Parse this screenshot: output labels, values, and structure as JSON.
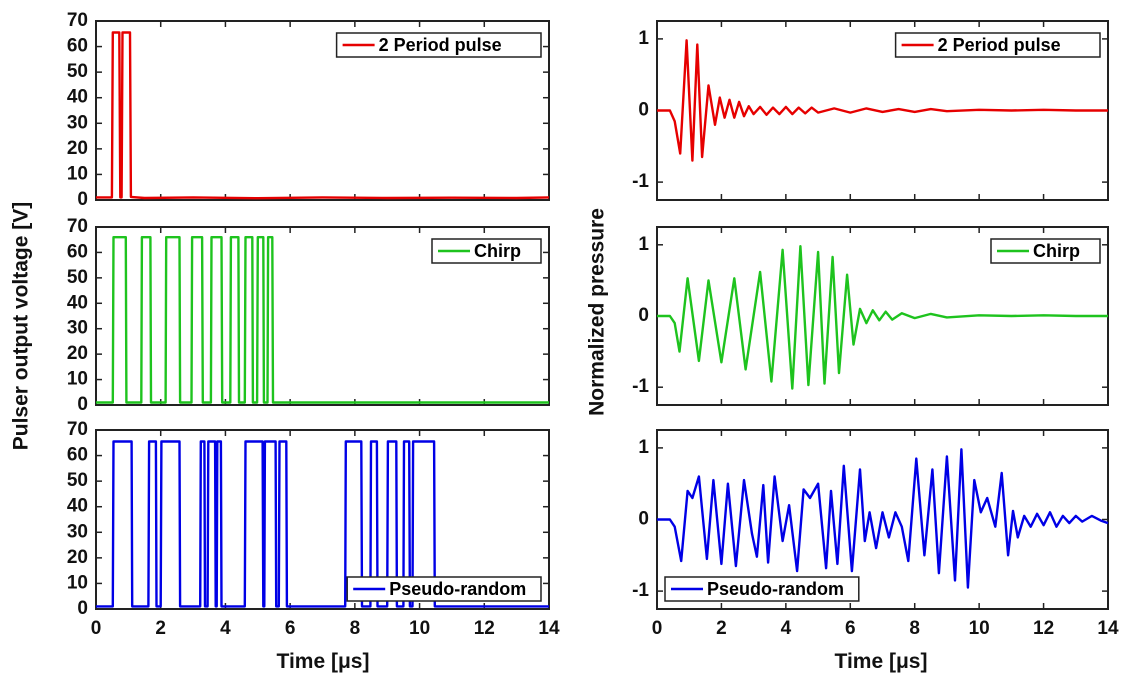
{
  "figure": {
    "left_ylabel": "Pulser output voltage [V]",
    "right_ylabel": "Normalized pressure",
    "left_xlabel": "Time [μs]",
    "right_xlabel": "Time [μs]"
  },
  "chart_data": [
    {
      "type": "line",
      "name": "voltage-2-period",
      "legend": "2 Period pulse",
      "color": "#e60000",
      "legend_position": "top-right",
      "xlim": [
        0,
        14
      ],
      "ylim": [
        0,
        70
      ],
      "xticks": [
        "0",
        "2",
        "4",
        "6",
        "8",
        "10",
        "12",
        "14"
      ],
      "yticks": [
        "0",
        "10",
        "20",
        "30",
        "40",
        "50",
        "60",
        "70"
      ],
      "show_xticklabels": false,
      "x": [
        0,
        0.49,
        0.52,
        0.72,
        0.75,
        0.79,
        0.82,
        1.05,
        1.08,
        1.5,
        3,
        5,
        7,
        9,
        11,
        13,
        14
      ],
      "y": [
        1,
        1,
        65.5,
        65.5,
        1,
        1,
        65.5,
        65.5,
        1.2,
        0.8,
        1.0,
        0.7,
        1.0,
        0.8,
        0.9,
        0.8,
        1.0
      ]
    },
    {
      "type": "line",
      "name": "voltage-chirp",
      "legend": "Chirp",
      "color": "#1ec31e",
      "legend_position": "top-right",
      "xlim": [
        0,
        14
      ],
      "ylim": [
        0,
        70
      ],
      "xticks": [
        "0",
        "2",
        "4",
        "6",
        "8",
        "10",
        "12",
        "14"
      ],
      "yticks": [
        "0",
        "10",
        "20",
        "30",
        "40",
        "50",
        "60",
        "70"
      ],
      "show_xticklabels": false,
      "pulses": [
        [
          0.52,
          0.92
        ],
        [
          1.4,
          1.68
        ],
        [
          2.15,
          2.58
        ],
        [
          2.95,
          3.28
        ],
        [
          3.55,
          3.88
        ],
        [
          4.15,
          4.4
        ],
        [
          4.6,
          4.83
        ],
        [
          4.98,
          5.17
        ],
        [
          5.3,
          5.45
        ]
      ],
      "high": 66,
      "low": 1
    },
    {
      "type": "line",
      "name": "voltage-pseudo-random",
      "legend": "Pseudo-random",
      "color": "#0000e6",
      "legend_position": "bottom-right",
      "xlim": [
        0,
        14
      ],
      "ylim": [
        0,
        70
      ],
      "xticks": [
        "0",
        "2",
        "4",
        "6",
        "8",
        "10",
        "12",
        "14"
      ],
      "yticks": [
        "0",
        "10",
        "20",
        "30",
        "40",
        "50",
        "60",
        "70"
      ],
      "show_xticklabels": true,
      "pulses": [
        [
          0.52,
          1.1
        ],
        [
          1.62,
          1.85
        ],
        [
          2.0,
          2.58
        ],
        [
          3.22,
          3.35
        ],
        [
          3.45,
          3.68
        ],
        [
          3.73,
          3.86
        ],
        [
          4.6,
          5.15
        ],
        [
          5.2,
          5.55
        ],
        [
          5.65,
          5.88
        ],
        [
          7.7,
          8.2
        ],
        [
          8.48,
          8.68
        ],
        [
          9.0,
          9.28
        ],
        [
          9.5,
          9.68
        ],
        [
          9.78,
          10.45
        ]
      ],
      "high": 65.5,
      "low": 1
    },
    {
      "type": "line",
      "name": "pressure-2-period",
      "legend": "2 Period pulse",
      "color": "#e60000",
      "legend_position": "top-right",
      "xlim": [
        0,
        14
      ],
      "ylim": [
        -1.25,
        1.25
      ],
      "xticks": [
        "0",
        "2",
        "4",
        "6",
        "8",
        "10",
        "12",
        "14"
      ],
      "yticks": [
        "-1",
        "0",
        "1"
      ],
      "show_xticklabels": false,
      "x": [
        0,
        0.4,
        0.55,
        0.72,
        0.92,
        1.1,
        1.25,
        1.4,
        1.6,
        1.8,
        1.95,
        2.1,
        2.25,
        2.4,
        2.55,
        2.7,
        2.85,
        3.0,
        3.2,
        3.4,
        3.6,
        3.8,
        4.0,
        4.2,
        4.4,
        4.6,
        4.8,
        5.0,
        5.5,
        6.0,
        6.5,
        7.0,
        7.5,
        8.0,
        8.5,
        9.0,
        10.0,
        11.0,
        12.0,
        13.0,
        14.0
      ],
      "y": [
        0,
        0,
        -0.15,
        -0.6,
        0.98,
        -0.7,
        0.92,
        -0.65,
        0.35,
        -0.2,
        0.18,
        -0.1,
        0.15,
        -0.1,
        0.12,
        -0.08,
        0.06,
        -0.05,
        0.05,
        -0.06,
        0.04,
        -0.05,
        0.05,
        -0.05,
        0.04,
        -0.04,
        0.04,
        -0.03,
        0.03,
        -0.03,
        0.03,
        -0.02,
        0.02,
        -0.02,
        0.02,
        -0.01,
        0.01,
        0,
        0.01,
        0,
        0
      ]
    },
    {
      "type": "line",
      "name": "pressure-chirp",
      "legend": "Chirp",
      "color": "#1ec31e",
      "legend_position": "top-right",
      "xlim": [
        0,
        14
      ],
      "ylim": [
        -1.25,
        1.25
      ],
      "xticks": [
        "0",
        "2",
        "4",
        "6",
        "8",
        "10",
        "12",
        "14"
      ],
      "yticks": [
        "-1",
        "0",
        "1"
      ],
      "show_xticklabels": false,
      "x": [
        0,
        0.4,
        0.55,
        0.7,
        0.95,
        1.3,
        1.6,
        2.0,
        2.4,
        2.75,
        3.2,
        3.55,
        3.9,
        4.2,
        4.45,
        4.7,
        5.0,
        5.2,
        5.45,
        5.65,
        5.9,
        6.1,
        6.3,
        6.5,
        6.7,
        6.9,
        7.1,
        7.3,
        7.6,
        8.0,
        8.5,
        9.0,
        10.0,
        11.0,
        12.0,
        13.0,
        14.0
      ],
      "y": [
        0,
        0,
        -0.1,
        -0.5,
        0.53,
        -0.63,
        0.5,
        -0.65,
        0.53,
        -0.75,
        0.62,
        -0.92,
        0.93,
        -1.02,
        0.98,
        -0.97,
        0.9,
        -0.95,
        0.83,
        -0.8,
        0.58,
        -0.4,
        0.1,
        -0.1,
        0.08,
        -0.06,
        0.06,
        -0.05,
        0.04,
        -0.03,
        0.03,
        -0.02,
        0.01,
        0,
        0.01,
        0,
        0
      ]
    },
    {
      "type": "line",
      "name": "pressure-pseudo-random",
      "legend": "Pseudo-random",
      "color": "#0000e6",
      "legend_position": "bottom-left",
      "xlim": [
        0,
        14
      ],
      "ylim": [
        -1.25,
        1.25
      ],
      "xticks": [
        "0",
        "2",
        "4",
        "6",
        "8",
        "10",
        "12",
        "14"
      ],
      "yticks": [
        "-1",
        "0",
        "1"
      ],
      "show_xticklabels": true,
      "x": [
        0,
        0.4,
        0.55,
        0.75,
        0.95,
        1.1,
        1.3,
        1.55,
        1.75,
        2.0,
        2.2,
        2.45,
        2.7,
        2.95,
        3.1,
        3.3,
        3.45,
        3.65,
        3.9,
        4.1,
        4.35,
        4.55,
        4.75,
        5.0,
        5.25,
        5.4,
        5.6,
        5.8,
        6.05,
        6.3,
        6.45,
        6.6,
        6.8,
        7.0,
        7.2,
        7.4,
        7.6,
        7.8,
        8.05,
        8.3,
        8.55,
        8.75,
        9.0,
        9.25,
        9.45,
        9.65,
        9.85,
        10.05,
        10.25,
        10.5,
        10.7,
        10.9,
        11.05,
        11.2,
        11.4,
        11.6,
        11.8,
        12.0,
        12.2,
        12.4,
        12.6,
        12.8,
        13.0,
        13.2,
        13.5,
        13.8,
        14.0
      ],
      "y": [
        0,
        0,
        -0.1,
        -0.58,
        0.4,
        0.3,
        0.6,
        -0.55,
        0.55,
        -0.62,
        0.5,
        -0.65,
        0.55,
        -0.2,
        -0.52,
        0.48,
        -0.6,
        0.6,
        -0.3,
        0.2,
        -0.72,
        0.42,
        0.3,
        0.5,
        -0.68,
        0.4,
        -0.62,
        0.75,
        -0.72,
        0.7,
        -0.3,
        0.1,
        -0.4,
        0.1,
        -0.25,
        0.1,
        -0.1,
        -0.58,
        0.85,
        -0.5,
        0.7,
        -0.75,
        0.88,
        -0.85,
        0.98,
        -0.95,
        0.55,
        0.1,
        0.3,
        -0.1,
        0.65,
        -0.5,
        0.12,
        -0.25,
        0.05,
        -0.1,
        0.08,
        -0.08,
        0.1,
        -0.1,
        0.05,
        -0.05,
        0.05,
        -0.03,
        0.05,
        -0.02,
        -0.05
      ]
    }
  ]
}
